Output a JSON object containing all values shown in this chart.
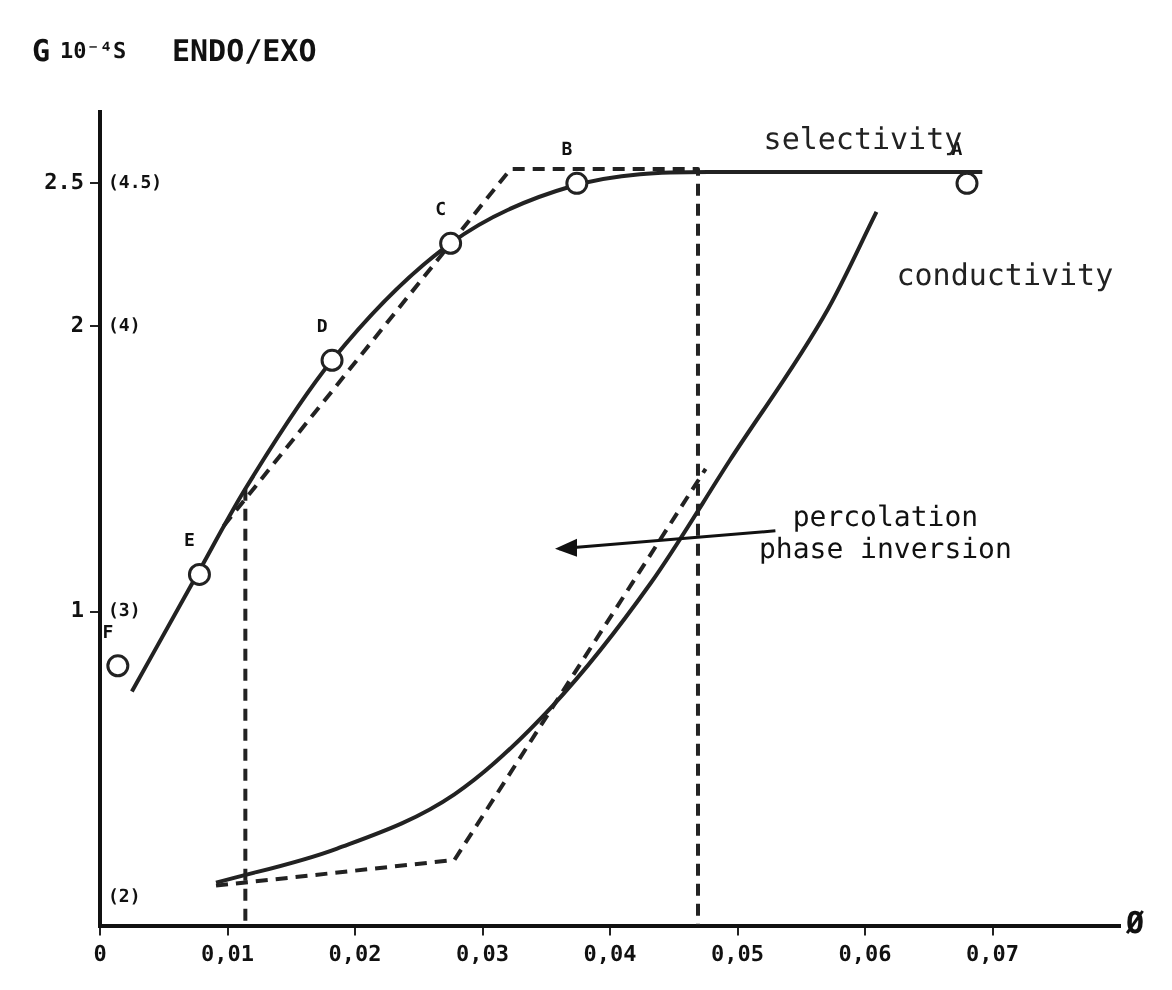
{
  "chart_data": {
    "type": "line",
    "xlabel": "Ø",
    "ylabel": "G",
    "y2label": "ENDO/EXO",
    "annotations": [
      "10⁻⁴S",
      "percolation\nphase inversion",
      "A",
      "B",
      "C",
      "D",
      "E",
      "F"
    ],
    "xlim": [
      0,
      0.08
    ],
    "xticks": [
      0,
      {
        "value": 0.01,
        "label": "0,01"
      },
      {
        "value": 0.02,
        "label": "0,02"
      },
      {
        "value": 0.03,
        "label": "0,03"
      },
      {
        "value": 0.04,
        "label": "0,04"
      },
      {
        "value": 0.05,
        "label": "0,05"
      },
      {
        "value": 0.06,
        "label": "0,06"
      },
      {
        "value": 0.07,
        "label": "0,07"
      }
    ],
    "ylim": [
      -0.1,
      2.75
    ],
    "yticks": [
      1,
      2,
      2.5
    ],
    "y2lim": [
      1.9,
      4.75
    ],
    "y2ticks": [
      {
        "value": 2,
        "label": "(2)"
      },
      {
        "value": 3,
        "label": "(3)"
      },
      {
        "value": 4,
        "label": "(4)"
      },
      {
        "value": 4.5,
        "label": "(4.5)"
      }
    ],
    "grid": false,
    "legend": false,
    "series": [
      {
        "type": "scatter",
        "axis": "y2",
        "marker": "circle",
        "color": "#222222",
        "x": [
          0.068,
          0.0374,
          0.0275,
          0.0182,
          0.0078,
          0.0014
        ],
        "values": [
          4.5,
          4.5,
          4.29,
          3.88,
          3.13,
          2.81
        ]
      },
      {
        "name": "selectivity",
        "axis": "y2",
        "color": "#222222",
        "line_style": "solid",
        "x": [
          0.0025,
          0.0075,
          0.0114,
          0.0182,
          0.0275,
          0.037,
          0.0477,
          0.0692
        ],
        "values": [
          2.72,
          3.12,
          3.43,
          3.88,
          4.29,
          4.49,
          4.54,
          4.54
        ]
      },
      {
        "name": "conductivity",
        "axis": "y",
        "color": "#222222",
        "line_style": "solid",
        "x": [
          0.0091,
          0.0186,
          0.0278,
          0.0355,
          0.0432,
          0.0494,
          0.0571,
          0.0609
        ],
        "values": [
          0.05,
          0.17,
          0.36,
          0.67,
          1.1,
          1.53,
          2.06,
          2.4
        ]
      },
      {
        "axis": "y2",
        "color": "#222222",
        "line_style": "dashed",
        "x": [
          0.0097,
          0.0322,
          0.0469,
          0.0469
        ],
        "values": [
          3.3,
          4.55,
          4.55,
          1.9
        ]
      },
      {
        "axis": "y2",
        "color": "#222222",
        "line_style": "dashed",
        "x": [
          0.0114,
          0.0114
        ],
        "values": [
          3.43,
          1.9
        ]
      },
      {
        "axis": "y",
        "color": "#222222",
        "line_style": "dashed",
        "x": [
          0.0091,
          0.0278,
          0.0475
        ],
        "values": [
          0.04,
          0.13,
          1.5
        ]
      }
    ]
  }
}
